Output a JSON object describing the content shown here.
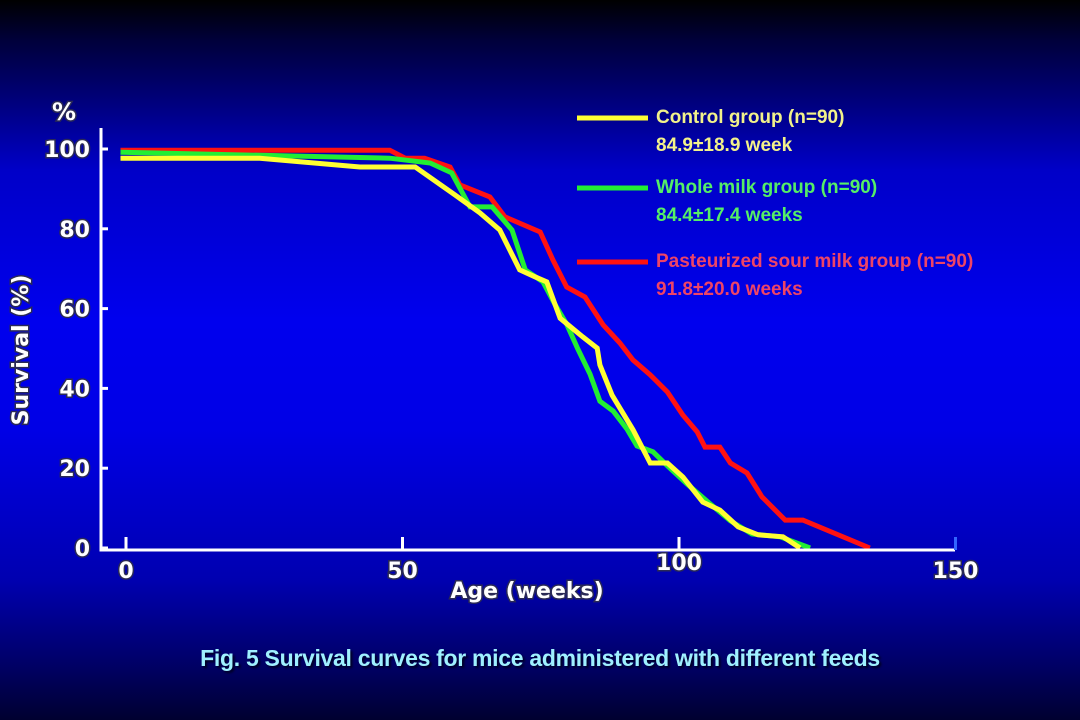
{
  "chart_data": {
    "type": "line",
    "title": "",
    "caption": "Fig. 5  Survival curves for mice administered with different feeds",
    "xlabel": "Age (weeks)",
    "ylabel": "Survival (%)",
    "y_unit_label": "%",
    "xlim": [
      -1,
      150
    ],
    "ylim": [
      0,
      100
    ],
    "x_ticks": [
      0,
      50,
      100,
      150
    ],
    "x_tick_labels": [
      "0",
      "50",
      "100",
      "150"
    ],
    "y_ticks": [
      0,
      20,
      40,
      60,
      80,
      100
    ],
    "y_tick_labels": [
      "0",
      "20",
      "40",
      "60",
      "80",
      "100"
    ],
    "grid": false,
    "legend_position": "top-right",
    "series": [
      {
        "name": "Control group (n=90)",
        "stat": "84.9±18.9 week",
        "color": "#ffff33",
        "label_color": "#f2f28a",
        "x": [
          -1,
          24.2,
          42.3,
          52.3,
          59.5,
          64,
          67.6,
          71.2,
          73.9,
          76.1,
          78.5,
          82.6,
          85.2,
          85.7,
          87.9,
          91.7,
          94.8,
          97.9,
          100.7,
          104.3,
          107.4,
          110.7,
          114.3,
          118.8,
          121.9
        ],
        "y": [
          97.7,
          97.7,
          95.5,
          95.5,
          88.5,
          84,
          79.7,
          69.7,
          68,
          66.7,
          57.6,
          52.9,
          50.1,
          45.9,
          38.3,
          29.6,
          21.3,
          21.3,
          17.8,
          11.5,
          9.5,
          5.3,
          3.3,
          2.8,
          0
        ]
      },
      {
        "name": "Whole milk group (n=90)",
        "stat": "84.4±17.4 weeks",
        "color": "#22ee33",
        "label_color": "#55ee66",
        "x": [
          -1,
          47.7,
          55,
          58.9,
          62.2,
          66.2,
          69.8,
          72.2,
          75.4,
          77.6,
          79.7,
          81.7,
          83.9,
          85.7,
          88.1,
          90.6,
          92.4,
          95.3,
          97.9,
          101.5,
          105.7,
          109.3,
          113.2,
          118.3,
          123.7
        ],
        "y": [
          99.2,
          97.7,
          96.5,
          94,
          85.5,
          85.5,
          79.7,
          69.7,
          66.7,
          61,
          56.1,
          49.9,
          43.6,
          36.8,
          34.3,
          29.8,
          25.6,
          24.1,
          20.6,
          16.0,
          11.0,
          6.8,
          3.5,
          2.8,
          0
        ]
      },
      {
        "name": "Pasteurized sour milk group (n=90)",
        "stat": "91.8±20.0 weeks",
        "color": "#ff1111",
        "label_color": "#ee4466",
        "x": [
          -1,
          47.7,
          50.5,
          54,
          58.6,
          60.4,
          65.8,
          68.5,
          74.9,
          77.2,
          79.7,
          83,
          86.3,
          89.3,
          91.7,
          94.8,
          97.9,
          100.7,
          103.3,
          104.7,
          107.4,
          109.3,
          112.3,
          115,
          119.2,
          122.4,
          134.5
        ],
        "y": [
          99.7,
          99.7,
          97.7,
          97.7,
          95.5,
          91,
          88,
          83,
          79.2,
          72.2,
          65.4,
          62.9,
          55.9,
          51.4,
          47.1,
          43.4,
          39.1,
          33.3,
          29.1,
          25.3,
          25.3,
          21.3,
          18.8,
          12.8,
          7.0,
          7.0,
          0
        ]
      }
    ]
  }
}
